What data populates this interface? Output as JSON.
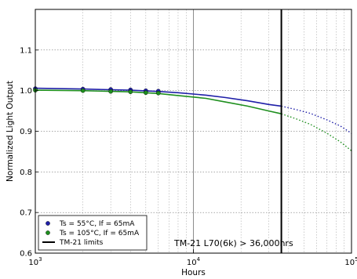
{
  "chart_data": {
    "type": "scatter",
    "title": "",
    "xlabel": "Hours",
    "ylabel": "Normalized Light Output",
    "xscale": "log",
    "xlim": [
      1000,
      100000
    ],
    "ylim": [
      0.6,
      1.2
    ],
    "x_ticks": [
      {
        "value": 1000,
        "mantissa": "10",
        "exp": "3"
      },
      {
        "value": 10000,
        "mantissa": "10",
        "exp": "4"
      },
      {
        "value": 100000,
        "mantissa": "10",
        "exp": "5"
      }
    ],
    "y_ticks": [
      {
        "value": 0.6,
        "label": "0.6"
      },
      {
        "value": 0.7,
        "label": "0.7"
      },
      {
        "value": 0.8,
        "label": "0.8"
      },
      {
        "value": 0.9,
        "label": "0.9"
      },
      {
        "value": 1.0,
        "label": "1.0"
      },
      {
        "value": 1.1,
        "label": "1.1"
      }
    ],
    "grid": true,
    "legend_position": "bottom-left",
    "series": [
      {
        "name": "Ts = 55°C, If = 65mA",
        "color": "#1f1fa8",
        "points_x": [
          1000,
          2000,
          3000,
          4000,
          5000,
          6000
        ],
        "points_y": [
          1.005,
          1.004,
          1.003,
          1.002,
          1.0,
          0.999
        ],
        "fit_x": [
          1000,
          2000,
          4000,
          6000,
          8000,
          12000,
          16000,
          22000,
          30000,
          36000
        ],
        "fit_y": [
          1.006,
          1.004,
          1.001,
          0.998,
          0.995,
          0.989,
          0.983,
          0.975,
          0.966,
          0.962
        ],
        "projection_x": [
          36000,
          45000,
          55000,
          70000,
          85000,
          100000
        ],
        "projection_y": [
          0.962,
          0.953,
          0.944,
          0.928,
          0.913,
          0.895
        ]
      },
      {
        "name": "Ts = 105°C, If = 65mA",
        "color": "#1e8f1e",
        "points_x": [
          1000,
          2000,
          3000,
          4000,
          5000,
          6000
        ],
        "points_y": [
          1.001,
          1.0,
          0.998,
          0.997,
          0.995,
          0.994
        ],
        "fit_x": [
          1000,
          2000,
          4000,
          6000,
          8000,
          12000,
          16000,
          22000,
          30000,
          36000
        ],
        "fit_y": [
          1.001,
          1.0,
          0.997,
          0.993,
          0.988,
          0.981,
          0.972,
          0.962,
          0.95,
          0.943
        ],
        "projection_x": [
          36000,
          45000,
          55000,
          70000,
          85000,
          100000
        ],
        "projection_y": [
          0.943,
          0.93,
          0.917,
          0.895,
          0.874,
          0.852
        ]
      }
    ],
    "limit_line": {
      "name": "TM-21 limits",
      "x": 36000,
      "color": "#000000"
    },
    "annotation": "TM-21 L70(6k) > 36,000hrs"
  }
}
